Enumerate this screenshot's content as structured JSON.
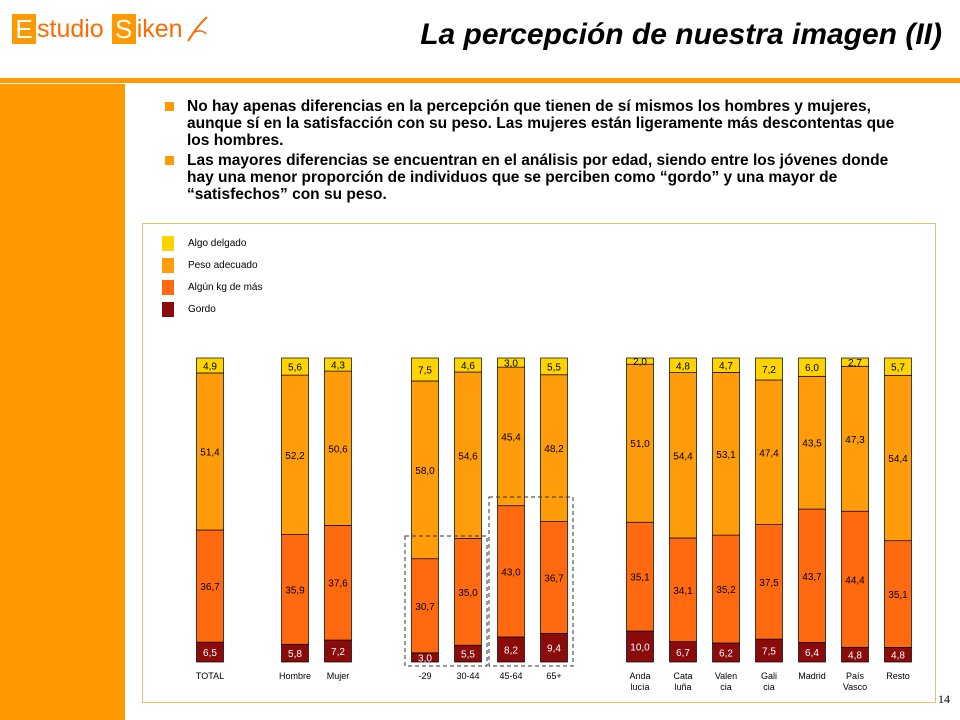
{
  "logo": {
    "letter1": "E",
    "word1": "studio",
    "letter2": "S",
    "word2": "iken"
  },
  "title": "La percepción de nuestra imagen (II)",
  "bullets": [
    "No hay apenas diferencias en la percepción que tienen de sí mismos los hombres y mujeres, aunque sí en la satisfacción con su peso. Las mujeres están ligeramente más descontentas que los hombres.",
    "Las mayores diferencias se encuentran en el análisis por edad, siendo entre los jóvenes donde hay una menor proporción de individuos que se perciben como “gordo” y una mayor de “satisfechos” con su peso."
  ],
  "page_number": "14",
  "colors": {
    "accent": "#ff9900",
    "algo_delgado": "#ffd400",
    "peso_adecuado": "#ff9c0a",
    "algun_kg": "#ff6a10",
    "gordo": "#8b0a0a"
  },
  "chart_data": {
    "type": "bar",
    "stacked": true,
    "ylim": [
      0,
      100
    ],
    "legend": [
      {
        "name": "Algo delgado",
        "color": "#ffd400"
      },
      {
        "name": "Peso adecuado",
        "color": "#ff9c0a"
      },
      {
        "name": "Algún kg de más",
        "color": "#ff6a10"
      },
      {
        "name": "Gordo",
        "color": "#8b0a0a"
      }
    ],
    "categories": [
      {
        "label": [
          "TOTAL"
        ],
        "gordo": "6,5",
        "algun": "36,7",
        "adecuado": "51,4",
        "delgado": "4,9"
      },
      {
        "label": [
          "Hombre"
        ],
        "gordo": "5,8",
        "algun": "35,9",
        "adecuado": "52,2",
        "delgado": "5,6"
      },
      {
        "label": [
          "Mujer"
        ],
        "gordo": "7,2",
        "algun": "37,6",
        "adecuado": "50,6",
        "delgado": "4,3"
      },
      {
        "label": [
          "-29"
        ],
        "gordo": "3,0",
        "algun": "30,7",
        "adecuado": "58,0",
        "delgado": "7,5"
      },
      {
        "label": [
          "30-44"
        ],
        "gordo": "5,5",
        "algun": "35,0",
        "adecuado": "54,6",
        "delgado": "4,6"
      },
      {
        "label": [
          "45-64"
        ],
        "gordo": "8,2",
        "algun": "43,0",
        "adecuado": "45,4",
        "delgado": "3,0"
      },
      {
        "label": [
          "65+"
        ],
        "gordo": "9,4",
        "algun": "36,7",
        "adecuado": "48,2",
        "delgado": "5,5"
      },
      {
        "label": [
          "Anda",
          "lucía"
        ],
        "gordo": "10,0",
        "algun": "35,1",
        "adecuado": "51,0",
        "delgado": "2,0"
      },
      {
        "label": [
          "Cata",
          "luña"
        ],
        "gordo": "6,7",
        "algun": "34,1",
        "adecuado": "54,4",
        "delgado": "4,8"
      },
      {
        "label": [
          "Valen",
          "cia"
        ],
        "gordo": "6,2",
        "algun": "35,2",
        "adecuado": "53,1",
        "delgado": "4,7"
      },
      {
        "label": [
          "Gali",
          "cia"
        ],
        "gordo": "7,5",
        "algun": "37,5",
        "adecuado": "47,4",
        "delgado": "7,2"
      },
      {
        "label": [
          "Madrid"
        ],
        "gordo": "6,4",
        "algun": "43,7",
        "adecuado": "43,5",
        "delgado": "6,0"
      },
      {
        "label": [
          "País",
          "Vasco"
        ],
        "gordo": "4,8",
        "algun": "44,4",
        "adecuado": "47,3",
        "delgado": "2,7"
      },
      {
        "label": [
          "Resto"
        ],
        "gordo": "4,8",
        "algun": "35,1",
        "adecuado": "54,4",
        "delgado": "5,7"
      }
    ],
    "highlighted_categories": [
      "-29",
      "45-64",
      "65+"
    ]
  }
}
